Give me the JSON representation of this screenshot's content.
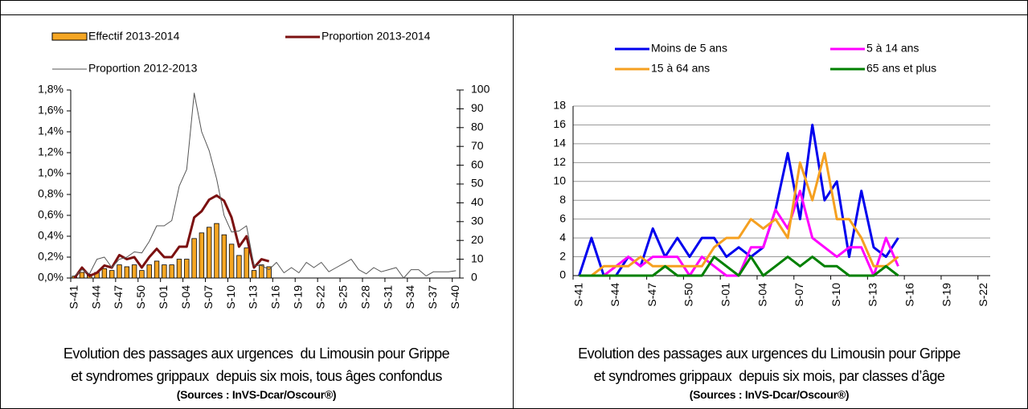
{
  "chart_data": [
    {
      "type": "combo",
      "categories": [
        "S-41",
        null,
        null,
        "S-44",
        null,
        null,
        "S-47",
        null,
        null,
        "S-50",
        null,
        null,
        "S-01",
        null,
        null,
        "S-04",
        null,
        null,
        "S-07",
        null,
        null,
        "S-10",
        null,
        null,
        "S-13",
        null,
        null,
        "S-16",
        null,
        null,
        "S-19",
        null,
        null,
        "S-22",
        null,
        null,
        "S-25",
        null,
        null,
        "S-28",
        null,
        null,
        "S-31",
        null,
        null,
        "S-34",
        null,
        null,
        "S-37",
        null,
        null,
        "S-40"
      ],
      "series": [
        {
          "name": "Effectif 2013-2014",
          "type": "bar",
          "axis": "y2",
          "color": "#f5a623",
          "values": [
            1,
            3,
            2,
            3,
            5,
            4,
            7,
            6,
            7,
            4,
            7,
            9,
            7,
            7,
            10,
            10,
            21,
            24,
            27,
            29,
            23,
            18,
            12,
            16,
            4,
            7,
            6,
            null,
            null,
            null,
            null,
            null,
            null,
            null,
            null,
            null,
            null,
            null,
            null,
            null,
            null,
            null,
            null,
            null,
            null,
            null,
            null,
            null,
            null,
            null,
            null,
            null
          ]
        },
        {
          "name": "Proportion 2013-2014",
          "type": "line",
          "color": "#7b1010",
          "values": [
            0.0,
            0.1,
            0.02,
            0.05,
            0.12,
            0.1,
            0.22,
            0.18,
            0.2,
            0.1,
            0.2,
            0.28,
            0.2,
            0.2,
            0.3,
            0.3,
            0.58,
            0.64,
            0.75,
            0.79,
            0.74,
            0.58,
            0.3,
            0.4,
            0.1,
            0.18,
            0.16,
            null,
            null,
            null,
            null,
            null,
            null,
            null,
            null,
            null,
            null,
            null,
            null,
            null,
            null,
            null,
            null,
            null,
            null,
            null,
            null,
            null,
            null,
            null,
            null,
            null
          ]
        },
        {
          "name": "Proportion 2012-2013",
          "type": "line",
          "color": "#555555",
          "values": [
            0.02,
            0.08,
            0.04,
            0.18,
            0.2,
            0.1,
            0.18,
            0.2,
            0.25,
            0.24,
            0.35,
            0.5,
            0.5,
            0.55,
            0.88,
            1.04,
            1.77,
            1.4,
            1.22,
            0.95,
            0.6,
            0.44,
            0.45,
            0.5,
            0.12,
            0.12,
            0.08,
            0.15,
            0.05,
            0.1,
            0.05,
            0.15,
            0.1,
            0.15,
            0.06,
            0.1,
            0.14,
            0.18,
            0.08,
            0.04,
            0.1,
            0.06,
            0.08,
            0.1,
            0.0,
            0.08,
            0.08,
            0.02,
            0.06,
            0.06,
            0.06,
            0.07
          ]
        }
      ],
      "ylim": [
        0,
        1.8
      ],
      "yticks": [
        {
          "value": 0,
          "label": "0,0%"
        },
        {
          "value": 0.2,
          "label": "0,2%"
        },
        {
          "value": 0.4,
          "label": "0,4%"
        },
        {
          "value": 0.6,
          "label": "0,6%"
        },
        {
          "value": 0.8,
          "label": "0,8%"
        },
        {
          "value": 1.0,
          "label": "1,0%"
        },
        {
          "value": 1.2,
          "label": "1,2%"
        },
        {
          "value": 1.4,
          "label": "1,4%"
        },
        {
          "value": 1.6,
          "label": "1,6%"
        },
        {
          "value": 1.8,
          "label": "1,8%"
        }
      ],
      "y2lim": [
        0,
        100
      ],
      "y2ticks": [
        0,
        10,
        20,
        30,
        40,
        50,
        60,
        70,
        80,
        90,
        100
      ],
      "grid": false,
      "caption": [
        "Evolution des passages aux urgences  du Limousin pour Grippe",
        "et syndromes grippaux  depuis six mois, tous âges confondus"
      ],
      "source": "(Sources : InVS-Dcar/Oscour®)"
    },
    {
      "type": "line",
      "categories": [
        "S-41",
        null,
        null,
        "S-44",
        null,
        null,
        "S-47",
        null,
        null,
        "S-50",
        null,
        null,
        "S-01",
        null,
        null,
        "S-04",
        null,
        null,
        "S-07",
        null,
        null,
        "S-10",
        null,
        null,
        "S-13",
        null,
        null,
        "S-16",
        null,
        null,
        "S-19",
        null,
        null,
        "S-22"
      ],
      "series": [
        {
          "name": "Moins de 5 ans",
          "color": "#0000ee",
          "values": [
            0,
            4,
            0,
            0,
            2,
            1,
            5,
            2,
            4,
            2,
            4,
            4,
            2,
            3,
            2,
            3,
            7,
            13,
            6,
            16,
            8,
            10,
            2,
            9,
            3,
            2,
            4,
            null,
            null,
            null,
            null,
            null,
            null,
            null
          ]
        },
        {
          "name": "5 à 14 ans",
          "color": "#ff00ff",
          "values": [
            0,
            0,
            0,
            1,
            2,
            1,
            2,
            2,
            2,
            0,
            2,
            1,
            0,
            0,
            3,
            3,
            7,
            5,
            9,
            4,
            3,
            2,
            3,
            3,
            0,
            4,
            1,
            null,
            null,
            null,
            null,
            null,
            null,
            null
          ]
        },
        {
          "name": "15 à 64 ans",
          "color": "#f5a020",
          "values": [
            0,
            0,
            1,
            1,
            1,
            2,
            1,
            1,
            1,
            1,
            1,
            3,
            4,
            4,
            6,
            5,
            6,
            4,
            12,
            8,
            13,
            6,
            6,
            4,
            1,
            1,
            2,
            null,
            null,
            null,
            null,
            null,
            null,
            null
          ]
        },
        {
          "name": "65 ans et plus",
          "color": "#008000",
          "values": [
            0,
            0,
            0,
            0,
            0,
            0,
            0,
            1,
            0,
            0,
            0,
            2,
            1,
            0,
            2,
            0,
            1,
            2,
            1,
            2,
            1,
            1,
            0,
            0,
            0,
            1,
            0,
            null,
            null,
            null,
            null,
            null,
            null,
            null
          ]
        }
      ],
      "ylim": [
        0,
        18
      ],
      "yticks": [
        0,
        2,
        4,
        6,
        8,
        10,
        12,
        14,
        16,
        18
      ],
      "grid": true,
      "caption": [
        "Evolution des passages aux urgences du Limousin pour Grippe",
        "et syndromes grippaux  depuis six mois, par classes d’âge"
      ],
      "source": "(Sources : InVS-Dcar/Oscour®)"
    }
  ]
}
